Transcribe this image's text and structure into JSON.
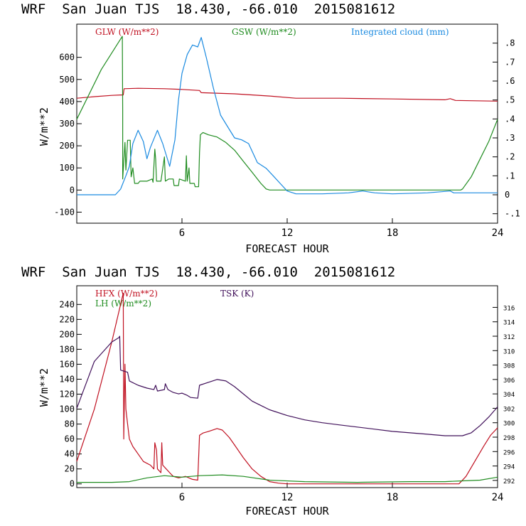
{
  "colors": {
    "red": "#c01020",
    "green": "#208c20",
    "blue": "#1a8ae0",
    "purple": "#40105a",
    "axis": "#000000"
  },
  "chart_data": [
    {
      "type": "line",
      "title": "WRF  San Juan TJS  18.430, -66.010  2015081612",
      "xlabel": "FORECAST HOUR",
      "ylabel": "W/m**2",
      "xlim": [
        0,
        24
      ],
      "ylim": [
        -150,
        750
      ],
      "y2lim": [
        -0.15,
        0.9
      ],
      "x_ticks": [
        6,
        12,
        18,
        24
      ],
      "y_ticks": [
        -100,
        0,
        100,
        200,
        300,
        400,
        500,
        600
      ],
      "y2_ticks": [
        -0.1,
        0,
        0.1,
        0.2,
        0.3,
        0.4,
        0.5,
        0.6,
        0.7,
        0.8
      ],
      "y2_tick_labels": [
        "-.1",
        "0",
        ".1",
        ".2",
        ".3",
        ".4",
        ".5",
        ".6",
        ".7",
        ".8"
      ],
      "series": [
        {
          "name": "GLW",
          "legend": "GLW (W/m**2)",
          "color": "#c01020",
          "axis": "left",
          "points": [
            [
              0,
              415
            ],
            [
              1,
              422
            ],
            [
              2,
              428
            ],
            [
              2.5,
              430
            ],
            [
              2.65,
              430
            ],
            [
              2.7,
              458
            ],
            [
              3.5,
              460
            ],
            [
              5,
              458
            ],
            [
              6,
              455
            ],
            [
              7,
              450
            ],
            [
              7.1,
              440
            ],
            [
              9,
              435
            ],
            [
              11,
              425
            ],
            [
              12.5,
              415
            ],
            [
              15,
              415
            ],
            [
              18,
              412
            ],
            [
              21,
              408
            ],
            [
              21.3,
              413
            ],
            [
              21.6,
              405
            ],
            [
              24,
              402
            ]
          ]
        },
        {
          "name": "GSW",
          "legend": "GSW (W/m**2)",
          "color": "#208c20",
          "axis": "left",
          "points": [
            [
              0,
              320
            ],
            [
              1.4,
              545
            ],
            [
              2.6,
              695
            ],
            [
              2.62,
              360
            ],
            [
              2.62,
              50
            ],
            [
              2.75,
              215
            ],
            [
              2.8,
              90
            ],
            [
              2.9,
              225
            ],
            [
              3.05,
              225
            ],
            [
              3.1,
              60
            ],
            [
              3.2,
              100
            ],
            [
              3.3,
              30
            ],
            [
              3.5,
              30
            ],
            [
              3.6,
              40
            ],
            [
              4,
              40
            ],
            [
              4.3,
              50
            ],
            [
              4.35,
              35
            ],
            [
              4.45,
              185
            ],
            [
              4.5,
              140
            ],
            [
              4.55,
              40
            ],
            [
              4.8,
              40
            ],
            [
              5,
              150
            ],
            [
              5.05,
              40
            ],
            [
              5.25,
              50
            ],
            [
              5.5,
              50
            ],
            [
              5.55,
              20
            ],
            [
              5.8,
              20
            ],
            [
              5.85,
              50
            ],
            [
              6.2,
              40
            ],
            [
              6.25,
              155
            ],
            [
              6.3,
              40
            ],
            [
              6.4,
              100
            ],
            [
              6.45,
              30
            ],
            [
              6.7,
              30
            ],
            [
              6.75,
              15
            ],
            [
              6.95,
              15
            ],
            [
              7,
              170
            ],
            [
              7.05,
              250
            ],
            [
              7.2,
              260
            ],
            [
              7.5,
              250
            ],
            [
              8,
              240
            ],
            [
              8.5,
              215
            ],
            [
              9,
              180
            ],
            [
              9.5,
              130
            ],
            [
              10,
              80
            ],
            [
              10.5,
              30
            ],
            [
              10.8,
              5
            ],
            [
              11,
              0
            ],
            [
              21.9,
              0
            ],
            [
              22,
              5
            ],
            [
              22.5,
              60
            ],
            [
              23,
              140
            ],
            [
              23.5,
              220
            ],
            [
              24,
              320
            ]
          ]
        },
        {
          "name": "Integrated cloud",
          "legend": "Integrated cloud (mm)",
          "color": "#1a8ae0",
          "axis": "right",
          "points": [
            [
              0,
              0
            ],
            [
              2.2,
              0
            ],
            [
              2.5,
              0.03
            ],
            [
              2.8,
              0.1
            ],
            [
              3,
              0.15
            ],
            [
              3.2,
              0.27
            ],
            [
              3.5,
              0.34
            ],
            [
              3.8,
              0.28
            ],
            [
              4,
              0.19
            ],
            [
              4.2,
              0.25
            ],
            [
              4.6,
              0.34
            ],
            [
              4.9,
              0.27
            ],
            [
              5.3,
              0.15
            ],
            [
              5.6,
              0.29
            ],
            [
              5.8,
              0.5
            ],
            [
              6,
              0.64
            ],
            [
              6.3,
              0.74
            ],
            [
              6.6,
              0.79
            ],
            [
              6.9,
              0.78
            ],
            [
              7.1,
              0.83
            ],
            [
              7.4,
              0.72
            ],
            [
              7.8,
              0.56
            ],
            [
              8.2,
              0.42
            ],
            [
              8.6,
              0.36
            ],
            [
              9,
              0.3
            ],
            [
              9.4,
              0.29
            ],
            [
              9.8,
              0.27
            ],
            [
              10.3,
              0.17
            ],
            [
              10.8,
              0.14
            ],
            [
              11.2,
              0.1
            ],
            [
              11.6,
              0.06
            ],
            [
              12,
              0.02
            ],
            [
              12.5,
              0.005
            ],
            [
              14,
              0.005
            ],
            [
              15.5,
              0.01
            ],
            [
              16.3,
              0.02
            ],
            [
              17,
              0.01
            ],
            [
              18,
              0.005
            ],
            [
              20,
              0.01
            ],
            [
              21.3,
              0.02
            ],
            [
              21.5,
              0.01
            ],
            [
              22,
              0.01
            ],
            [
              23,
              0.01
            ],
            [
              24,
              0.01
            ]
          ]
        }
      ]
    },
    {
      "type": "line",
      "title": "WRF  San Juan TJS  18.430, -66.010  2015081612",
      "xlabel": "FORECAST HOUR",
      "ylabel": "W/m**2",
      "xlim": [
        0,
        24
      ],
      "ylim": [
        -5,
        265
      ],
      "y2lim": [
        291,
        319
      ],
      "x_ticks": [
        6,
        12,
        18,
        24
      ],
      "y_ticks": [
        0,
        20,
        40,
        60,
        80,
        100,
        120,
        140,
        160,
        180,
        200,
        220,
        240
      ],
      "y2_ticks": [
        292,
        294,
        296,
        298,
        300,
        302,
        304,
        306,
        308,
        310,
        312,
        314,
        316
      ],
      "series": [
        {
          "name": "HFX",
          "legend": "HFX (W/m**2)",
          "color": "#c01020",
          "axis": "left",
          "points": [
            [
              0,
              30
            ],
            [
              1,
              100
            ],
            [
              2,
              190
            ],
            [
              2.6,
              250
            ],
            [
              2.65,
              255
            ],
            [
              2.68,
              60
            ],
            [
              2.75,
              160
            ],
            [
              2.8,
              100
            ],
            [
              2.9,
              80
            ],
            [
              3,
              60
            ],
            [
              3.2,
              50
            ],
            [
              3.5,
              40
            ],
            [
              3.8,
              30
            ],
            [
              4.2,
              25
            ],
            [
              4.4,
              20
            ],
            [
              4.45,
              55
            ],
            [
              4.55,
              45
            ],
            [
              4.6,
              20
            ],
            [
              4.8,
              15
            ],
            [
              4.85,
              55
            ],
            [
              4.9,
              25
            ],
            [
              5.1,
              20
            ],
            [
              5.3,
              15
            ],
            [
              5.5,
              10
            ],
            [
              5.8,
              8
            ],
            [
              6.2,
              10
            ],
            [
              6.6,
              6
            ],
            [
              6.9,
              5
            ],
            [
              7,
              65
            ],
            [
              7.2,
              68
            ],
            [
              7.5,
              70
            ],
            [
              8,
              74
            ],
            [
              8.3,
              72
            ],
            [
              8.7,
              62
            ],
            [
              9,
              52
            ],
            [
              9.5,
              35
            ],
            [
              10,
              20
            ],
            [
              10.5,
              10
            ],
            [
              11,
              3
            ],
            [
              11.5,
              1
            ],
            [
              12,
              0
            ],
            [
              16,
              0
            ],
            [
              21.8,
              0
            ],
            [
              22.2,
              10
            ],
            [
              22.7,
              30
            ],
            [
              23.2,
              50
            ],
            [
              23.6,
              65
            ],
            [
              24,
              75
            ]
          ]
        },
        {
          "name": "LH",
          "legend": "LH (W/m**2)",
          "color": "#208c20",
          "axis": "left",
          "points": [
            [
              0,
              2
            ],
            [
              2,
              2
            ],
            [
              3,
              3
            ],
            [
              4,
              8
            ],
            [
              5,
              11
            ],
            [
              6,
              9
            ],
            [
              7,
              11
            ],
            [
              8.3,
              12
            ],
            [
              9.5,
              10
            ],
            [
              11,
              5
            ],
            [
              13,
              3
            ],
            [
              16,
              2
            ],
            [
              19,
              3
            ],
            [
              21,
              3
            ],
            [
              22,
              4
            ],
            [
              23,
              5
            ],
            [
              24,
              9
            ]
          ]
        },
        {
          "name": "TSK",
          "legend": "TSK (K)",
          "color": "#40105a",
          "axis": "right",
          "points": [
            [
              0,
              302
            ],
            [
              1,
              308.5
            ],
            [
              2,
              311.2
            ],
            [
              2.4,
              311.8
            ],
            [
              2.45,
              312
            ],
            [
              2.5,
              307.3
            ],
            [
              2.9,
              307
            ],
            [
              3,
              305.8
            ],
            [
              3.5,
              305.2
            ],
            [
              4,
              304.8
            ],
            [
              4.4,
              304.6
            ],
            [
              4.5,
              305.2
            ],
            [
              4.6,
              304.4
            ],
            [
              5,
              304.6
            ],
            [
              5.05,
              305.4
            ],
            [
              5.2,
              304.6
            ],
            [
              5.5,
              304.2
            ],
            [
              5.8,
              304
            ],
            [
              6,
              304.1
            ],
            [
              6.3,
              303.8
            ],
            [
              6.5,
              303.5
            ],
            [
              6.9,
              303.4
            ],
            [
              7,
              305.2
            ],
            [
              7.5,
              305.6
            ],
            [
              8,
              306
            ],
            [
              8.5,
              305.8
            ],
            [
              9,
              305
            ],
            [
              9.5,
              304
            ],
            [
              10,
              303
            ],
            [
              10.5,
              302.4
            ],
            [
              11,
              301.8
            ],
            [
              12,
              301
            ],
            [
              13,
              300.4
            ],
            [
              14,
              300
            ],
            [
              15,
              299.7
            ],
            [
              16,
              299.4
            ],
            [
              17,
              299.1
            ],
            [
              18,
              298.8
            ],
            [
              19,
              298.6
            ],
            [
              20,
              298.4
            ],
            [
              21,
              298.2
            ],
            [
              22,
              298.2
            ],
            [
              22.5,
              298.6
            ],
            [
              23,
              299.6
            ],
            [
              23.5,
              300.8
            ],
            [
              24,
              302.2
            ]
          ]
        }
      ]
    }
  ]
}
